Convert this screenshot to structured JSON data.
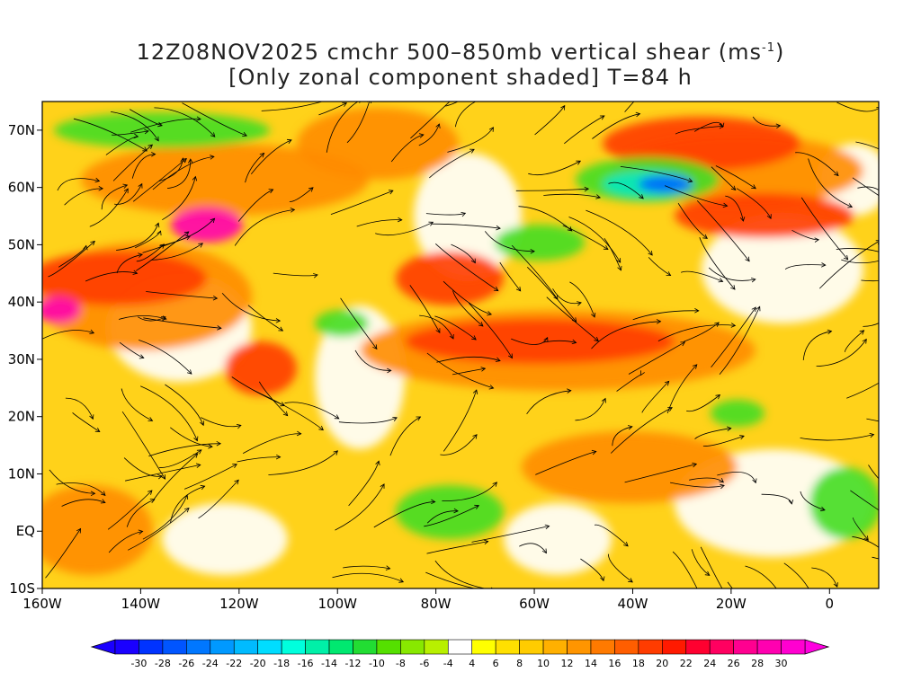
{
  "header": {
    "title_line1_prefix": "12Z08NOV2025 cmchr 500–850mb vertical shear (ms",
    "title_unit_sup": "-1",
    "title_line1_suffix": ")",
    "title_line2": "[Only zonal component shaded] T=84 h"
  },
  "map": {
    "lon_ticks": [
      {
        "value": -160,
        "label": "160W"
      },
      {
        "value": -140,
        "label": "140W"
      },
      {
        "value": -120,
        "label": "120W"
      },
      {
        "value": -100,
        "label": "100W"
      },
      {
        "value": -80,
        "label": "80W"
      },
      {
        "value": -60,
        "label": "60W"
      },
      {
        "value": -40,
        "label": "40W"
      },
      {
        "value": -20,
        "label": "20W"
      },
      {
        "value": 0,
        "label": "0"
      }
    ],
    "lat_ticks": [
      {
        "value": -10,
        "label": "10S"
      },
      {
        "value": 0,
        "label": "EQ"
      },
      {
        "value": 10,
        "label": "10N"
      },
      {
        "value": 20,
        "label": "20N"
      },
      {
        "value": 30,
        "label": "30N"
      },
      {
        "value": 40,
        "label": "40N"
      },
      {
        "value": 50,
        "label": "50N"
      },
      {
        "value": 60,
        "label": "60N"
      },
      {
        "value": 70,
        "label": "70N"
      }
    ],
    "lon_range": [
      -160,
      10
    ],
    "lat_range": [
      -10,
      75
    ]
  },
  "colorbar": {
    "labels": [
      "-30",
      "-28",
      "-26",
      "-24",
      "-22",
      "-20",
      "-18",
      "-16",
      "-14",
      "-12",
      "-10",
      "-8",
      "-6",
      "-4",
      "4",
      "6",
      "8",
      "10",
      "12",
      "14",
      "16",
      "18",
      "20",
      "22",
      "24",
      "26",
      "28",
      "30"
    ],
    "colors": [
      "#1a00ff",
      "#0033ff",
      "#0055ff",
      "#0077ff",
      "#0099ff",
      "#00bbff",
      "#00ddff",
      "#00ffdd",
      "#00f0a8",
      "#00e870",
      "#22dd33",
      "#55e000",
      "#88e800",
      "#b8f000",
      "#ffffff",
      "#ffff00",
      "#ffe000",
      "#ffcc00",
      "#ffb000",
      "#ff9500",
      "#ff7a00",
      "#ff5e00",
      "#ff3c00",
      "#ff1a00",
      "#ff0030",
      "#ff0060",
      "#ff0090",
      "#ff00b0",
      "#ff00d0"
    ]
  }
}
